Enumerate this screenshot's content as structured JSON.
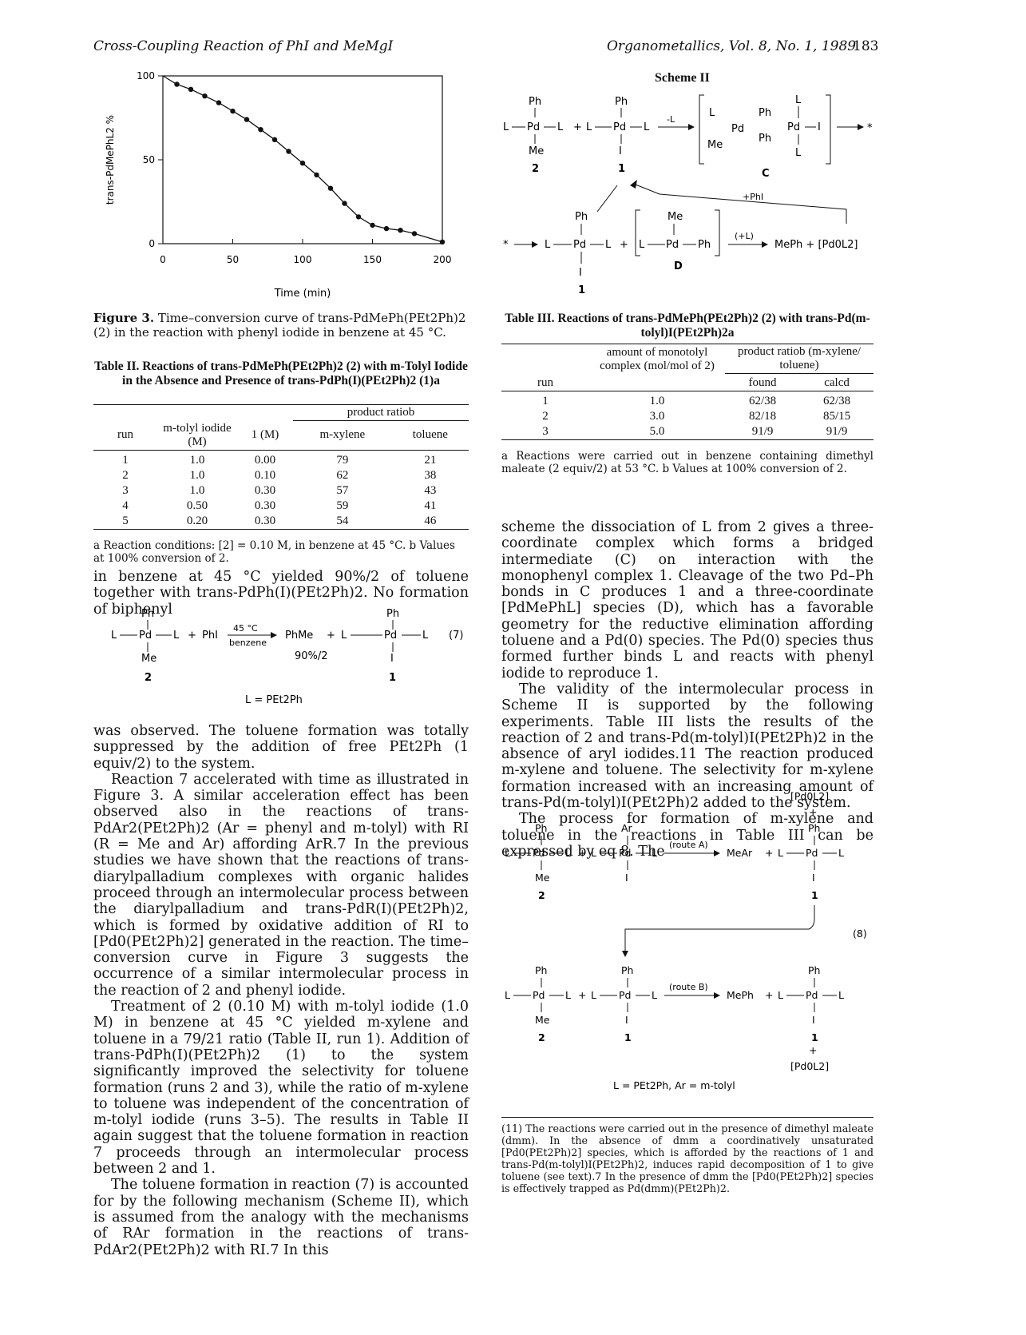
{
  "header": {
    "left": "Cross-Coupling Reaction of PhI and MeMgI",
    "right": "Organometallics, Vol. 8, No. 1, 1989",
    "page": "183"
  },
  "figure3": {
    "caption_label": "Figure 3.",
    "caption_text": "Time–conversion curve of trans-PdMePh(PEt2Ph)2 (2) in the reaction with phenyl iodide in benzene at 45 °C."
  },
  "chart_data": {
    "type": "line",
    "title": "",
    "xlabel": "Time (min)",
    "ylabel": "trans-PdMePhL2 %",
    "xlim": [
      0,
      200
    ],
    "ylim": [
      0,
      100
    ],
    "xticks": [
      0,
      50,
      100,
      150,
      200
    ],
    "yticks": [
      0,
      50,
      100
    ],
    "series": [
      {
        "x": [
          10,
          20,
          30,
          40,
          50,
          60,
          70,
          80,
          90,
          100,
          110,
          120,
          130,
          140,
          150,
          160,
          170,
          180,
          200
        ],
        "y": [
          95,
          92,
          88,
          84,
          79,
          74,
          68,
          62,
          55,
          48,
          41,
          33,
          24,
          16,
          11,
          9,
          8,
          6,
          1
        ]
      }
    ]
  },
  "table2": {
    "title": "Table II. Reactions of trans-PdMePh(PEt2Ph)2 (2) with m-Tolyl Iodide in the Absence and Presence of trans-PdPh(I)(PEt2Ph)2 (1)a",
    "col_run": "run",
    "col_tolyl": "m-tolyl iodide (M)",
    "col_1": "1 (M)",
    "col_ratio": "product ratiob",
    "col_xylene": "m-xylene",
    "col_toluene": "toluene",
    "rows": [
      [
        "1",
        "1.0",
        "0.00",
        "79",
        "21"
      ],
      [
        "2",
        "1.0",
        "0.10",
        "62",
        "38"
      ],
      [
        "3",
        "1.0",
        "0.30",
        "57",
        "43"
      ],
      [
        "4",
        "0.50",
        "0.30",
        "59",
        "41"
      ],
      [
        "5",
        "0.20",
        "0.30",
        "54",
        "46"
      ]
    ],
    "note": "a Reaction conditions: [2] = 0.10 M, in benzene at 45 °C. b Values at 100% conversion of 2."
  },
  "table3": {
    "title": "Table III. Reactions of trans-PdMePh(PEt2Ph)2 (2) with trans-Pd(m-tolyl)I(PEt2Ph)2a",
    "col_run": "run",
    "col_amount": "amount of monotolyl complex (mol/mol of 2)",
    "col_ratio": "product ratiob (m-xylene/ toluene)",
    "col_found": "found",
    "col_calcd": "calcd",
    "rows": [
      [
        "1",
        "1.0",
        "62/38",
        "62/38"
      ],
      [
        "2",
        "3.0",
        "82/18",
        "85/15"
      ],
      [
        "3",
        "5.0",
        "91/9",
        "91/9"
      ]
    ],
    "note": "a Reactions were carried out in benzene containing dimethyl maleate (2 equiv/2) at 53 °C. b Values at 100% conversion of 2."
  },
  "scheme2": {
    "title": "Scheme II",
    "labels": {
      "ph": "Ph",
      "me": "Me",
      "i": "I",
      "l": "L",
      "pd": "Pd",
      "n2": "2",
      "n1": "1",
      "c": "C",
      "d": "D",
      "minusL": "-L",
      "plusPhI": "+PhI",
      "plusL": "(+L)",
      "product": "MePh + [Pd0L2]",
      "star": "*",
      "plus": "+"
    }
  },
  "eq7": {
    "conditions_top": "45 °C",
    "conditions_bottom": "benzene",
    "yield": "90%/2",
    "product": "PhMe",
    "number": "(7)",
    "legend": "L = PEt2Ph",
    "phi": "PhI"
  },
  "eq8": {
    "number": "(8)",
    "routeA": "(route A)",
    "routeB": "(route B)",
    "meAr": "MeAr",
    "mePh": "MePh",
    "pd0": "[Pd0L2]",
    "legend": "L = PEt2Ph, Ar = m-tolyl",
    "ar": "Ar"
  },
  "text": {
    "left_p1": "in benzene at 45 °C yielded 90%/2 of toluene together with trans-PdPh(I)(PEt2Ph)2. No formation of biphenyl",
    "left_p2": "was observed. The toluene formation was totally suppressed by the addition of free PEt2Ph (1 equiv/2) to the system.",
    "left_p3": "Reaction 7 accelerated with time as illustrated in Figure 3. A similar acceleration effect has been observed also in the reactions of trans-PdAr2(PEt2Ph)2 (Ar = phenyl and m-tolyl) with RI (R = Me and Ar) affording ArR.7 In the previous studies we have shown that the reactions of trans-diarylpalladium complexes with organic halides proceed through an intermolecular process between the diarylpalladium and trans-PdR(I)(PEt2Ph)2, which is formed by oxidative addition of RI to [Pd0(PEt2Ph)2] generated in the reaction. The time–conversion curve in Figure 3 suggests the occurrence of a similar intermolecular process in the reaction of 2 and phenyl iodide.",
    "left_p4": "Treatment of 2 (0.10 M) with m-tolyl iodide (1.0 M) in benzene at 45 °C yielded m-xylene and toluene in a 79/21 ratio (Table II, run 1). Addition of trans-PdPh(I)(PEt2Ph)2 (1) to the system significantly improved the selectivity for toluene formation (runs 2 and 3), while the ratio of m-xylene to toluene was independent of the concentration of m-tolyl iodide (runs 3–5). The results in Table II again suggest that the toluene formation in reaction 7 proceeds through an intermolecular process between 2 and 1.",
    "left_p5": "The toluene formation in reaction (7) is accounted for by the following mechanism (Scheme II), which is assumed from the analogy with the mechanisms of RAr formation in the reactions of trans-PdAr2(PEt2Ph)2 with RI.7 In this",
    "right_p1": "scheme the dissociation of L from 2 gives a three-coordinate complex which forms a bridged intermediate (C) on interaction with the monophenyl complex 1. Cleavage of the two Pd–Ph bonds in C produces 1 and a three-coordinate [PdMePhL] species (D), which has a favorable geometry for the reductive elimination affording toluene and a Pd(0) species. The Pd(0) species thus formed further binds L and reacts with phenyl iodide to reproduce 1.",
    "right_p2": "The validity of the intermolecular process in Scheme II is supported by the following experiments. Table III lists the results of the reaction of 2 and trans-Pd(m-tolyl)I(PEt2Ph)2 in the absence of aryl iodides.11 The reaction produced m-xylene and toluene. The selectivity for m-xylene formation increased with an increasing amount of trans-Pd(m-tolyl)I(PEt2Ph)2 added to the system.",
    "right_p3": "The process for formation of m-xylene and toluene in the reactions in Table III can be expressed by eq 8. The",
    "footnote": "(11) The reactions were carried out in the presence of dimethyl maleate (dmm). In the absence of dmm a coordinatively unsaturated [Pd0(PEt2Ph)2] species, which is afforded by the reactions of 1 and trans-Pd(m-tolyl)I(PEt2Ph)2, induces rapid decomposition of 1 to give toluene (see text).7 In the presence of dmm the [Pd0(PEt2Ph)2] species is effectively trapped as Pd(dmm)(PEt2Ph)2."
  }
}
